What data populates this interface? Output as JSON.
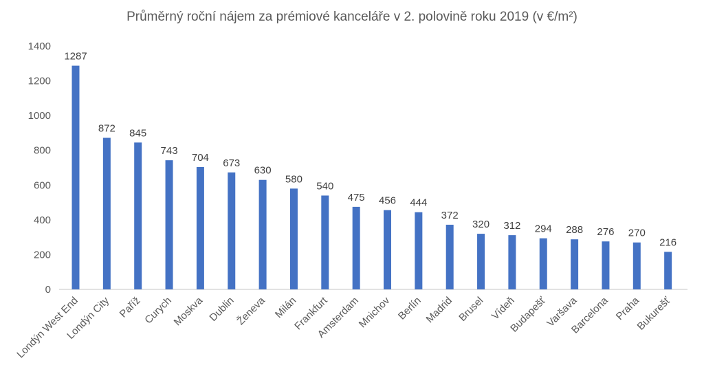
{
  "chart_data": {
    "type": "bar",
    "title": "Průměrný roční nájem za prémiové kanceláře v 2. polovině roku 2019 (v €/m²)",
    "xlabel": "",
    "ylabel": "",
    "ylim": [
      0,
      1400
    ],
    "yticks": [
      0,
      200,
      400,
      600,
      800,
      1000,
      1200,
      1400
    ],
    "grid": false,
    "bar_color": "#4472C4",
    "categories": [
      "Londýn West End",
      "Londýn City",
      "Paříž",
      "Curych",
      "Moskva",
      "Dublin",
      "Ženeva",
      "Milán",
      "Frankfurt",
      "Amsterdam",
      "Mnichov",
      "Berlín",
      "Madrid",
      "Brusel",
      "Vídeň",
      "Budapešť",
      "Varšava",
      "Barcelona",
      "Praha",
      "Bukurešť"
    ],
    "values": [
      1287,
      872,
      845,
      743,
      704,
      673,
      630,
      580,
      540,
      475,
      456,
      444,
      372,
      320,
      312,
      294,
      288,
      276,
      270,
      216
    ]
  }
}
